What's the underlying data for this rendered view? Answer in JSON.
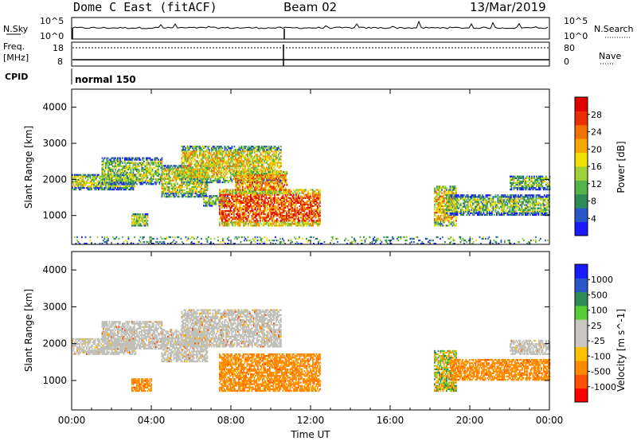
{
  "header": {
    "title": "Dome C East (fitACF)",
    "beam": "Beam 02",
    "date": "13/Mar/2019"
  },
  "strip_labels": {
    "nsky": "N.Sky",
    "nsearch": "N.Search",
    "freq": "Freq.",
    "freq_unit": "[MHz]",
    "nave": "Nave",
    "cpid": "CPID",
    "cpid_value": "normal 150",
    "nsky_ticks": [
      "10^5",
      "10^0"
    ],
    "nsearch_ticks": [
      "10^5",
      "10^0"
    ],
    "freq_ticks": [
      "18",
      "8"
    ],
    "nave_ticks": [
      "80",
      "0"
    ]
  },
  "colors": {
    "power_scale": [
      "#1a1aff",
      "#2a57c8",
      "#2f8a5a",
      "#55b24a",
      "#9fd23a",
      "#f0e000",
      "#f5a800",
      "#f07000",
      "#e83000",
      "#e00000"
    ],
    "velocity_scale": [
      "#ff0000",
      "#ff5000",
      "#ff8a00",
      "#ffc000",
      "#c8c8c0",
      "#c8c8c0",
      "#55cc33",
      "#2f8a5a",
      "#2a57c8",
      "#1a1aff"
    ],
    "ground_scatter": "#c0c0b8"
  },
  "chart_data": [
    {
      "type": "heatmap",
      "name": "power-panel",
      "xlabel": "",
      "ylabel": "Slant Range [km]",
      "xlim": [
        0,
        24
      ],
      "ylim": [
        200,
        4500
      ],
      "yticks": [
        "1000",
        "2000",
        "3000",
        "4000"
      ],
      "colorbar": {
        "label": "Power [dB]",
        "range": [
          0,
          32
        ],
        "ticks": [
          "4",
          "8",
          "12",
          "16",
          "20",
          "24",
          "28"
        ]
      },
      "regions": [
        {
          "t": [
            0.0,
            3.2
          ],
          "r": [
            1700,
            2150
          ],
          "level": 0.45
        },
        {
          "t": [
            1.5,
            4.5
          ],
          "r": [
            1850,
            2600
          ],
          "level": 0.4
        },
        {
          "t": [
            3.0,
            3.8
          ],
          "r": [
            700,
            1050
          ],
          "level": 0.45
        },
        {
          "t": [
            4.5,
            6.8
          ],
          "r": [
            1500,
            2400
          ],
          "level": 0.5
        },
        {
          "t": [
            5.5,
            10.5
          ],
          "r": [
            1900,
            2900
          ],
          "level": 0.55
        },
        {
          "t": [
            6.6,
            7.8
          ],
          "r": [
            1250,
            1550
          ],
          "level": 0.35
        },
        {
          "t": [
            7.4,
            12.5
          ],
          "r": [
            700,
            1700
          ],
          "level": 0.8
        },
        {
          "t": [
            8.2,
            10.8
          ],
          "r": [
            1600,
            2200
          ],
          "level": 0.7
        },
        {
          "t": [
            18.2,
            19.3
          ],
          "r": [
            700,
            1800
          ],
          "level": 0.6
        },
        {
          "t": [
            18.8,
            24.0
          ],
          "r": [
            1000,
            1550
          ],
          "level": 0.4
        },
        {
          "t": [
            22.0,
            24.0
          ],
          "r": [
            1700,
            2100
          ],
          "level": 0.4
        },
        {
          "t": [
            0.0,
            24.0
          ],
          "r": [
            200,
            420
          ],
          "level": 0.3
        }
      ]
    },
    {
      "type": "heatmap",
      "name": "velocity-panel",
      "xlabel": "Time UT",
      "ylabel": "Slant Range [km]",
      "xlim": [
        0,
        24
      ],
      "ylim": [
        200,
        4500
      ],
      "xticks": [
        "00:00",
        "04:00",
        "08:00",
        "12:00",
        "16:00",
        "20:00",
        "00:00"
      ],
      "yticks": [
        "1000",
        "2000",
        "3000",
        "4000"
      ],
      "colorbar": {
        "label": "Velocity [m s^-1]",
        "ticks": [
          "1000",
          "500",
          "100",
          "25",
          "-25",
          "-100",
          "-500",
          "-1000"
        ]
      },
      "regions": [
        {
          "t": [
            0.0,
            3.2
          ],
          "r": [
            1700,
            2150
          ],
          "kind": "ground"
        },
        {
          "t": [
            1.5,
            4.5
          ],
          "r": [
            1850,
            2600
          ],
          "kind": "ground"
        },
        {
          "t": [
            3.0,
            4.0
          ],
          "r": [
            700,
            1050
          ],
          "kind": "negative"
        },
        {
          "t": [
            4.5,
            6.8
          ],
          "r": [
            1500,
            2400
          ],
          "kind": "ground"
        },
        {
          "t": [
            5.5,
            10.5
          ],
          "r": [
            1900,
            2900
          ],
          "kind": "ground"
        },
        {
          "t": [
            7.4,
            12.5
          ],
          "r": [
            700,
            1700
          ],
          "kind": "negative"
        },
        {
          "t": [
            18.2,
            19.3
          ],
          "r": [
            700,
            1800
          ],
          "kind": "mixed"
        },
        {
          "t": [
            19.0,
            24.0
          ],
          "r": [
            1000,
            1550
          ],
          "kind": "negative"
        },
        {
          "t": [
            22.0,
            24.0
          ],
          "r": [
            1700,
            2100
          ],
          "kind": "ground"
        }
      ]
    }
  ]
}
